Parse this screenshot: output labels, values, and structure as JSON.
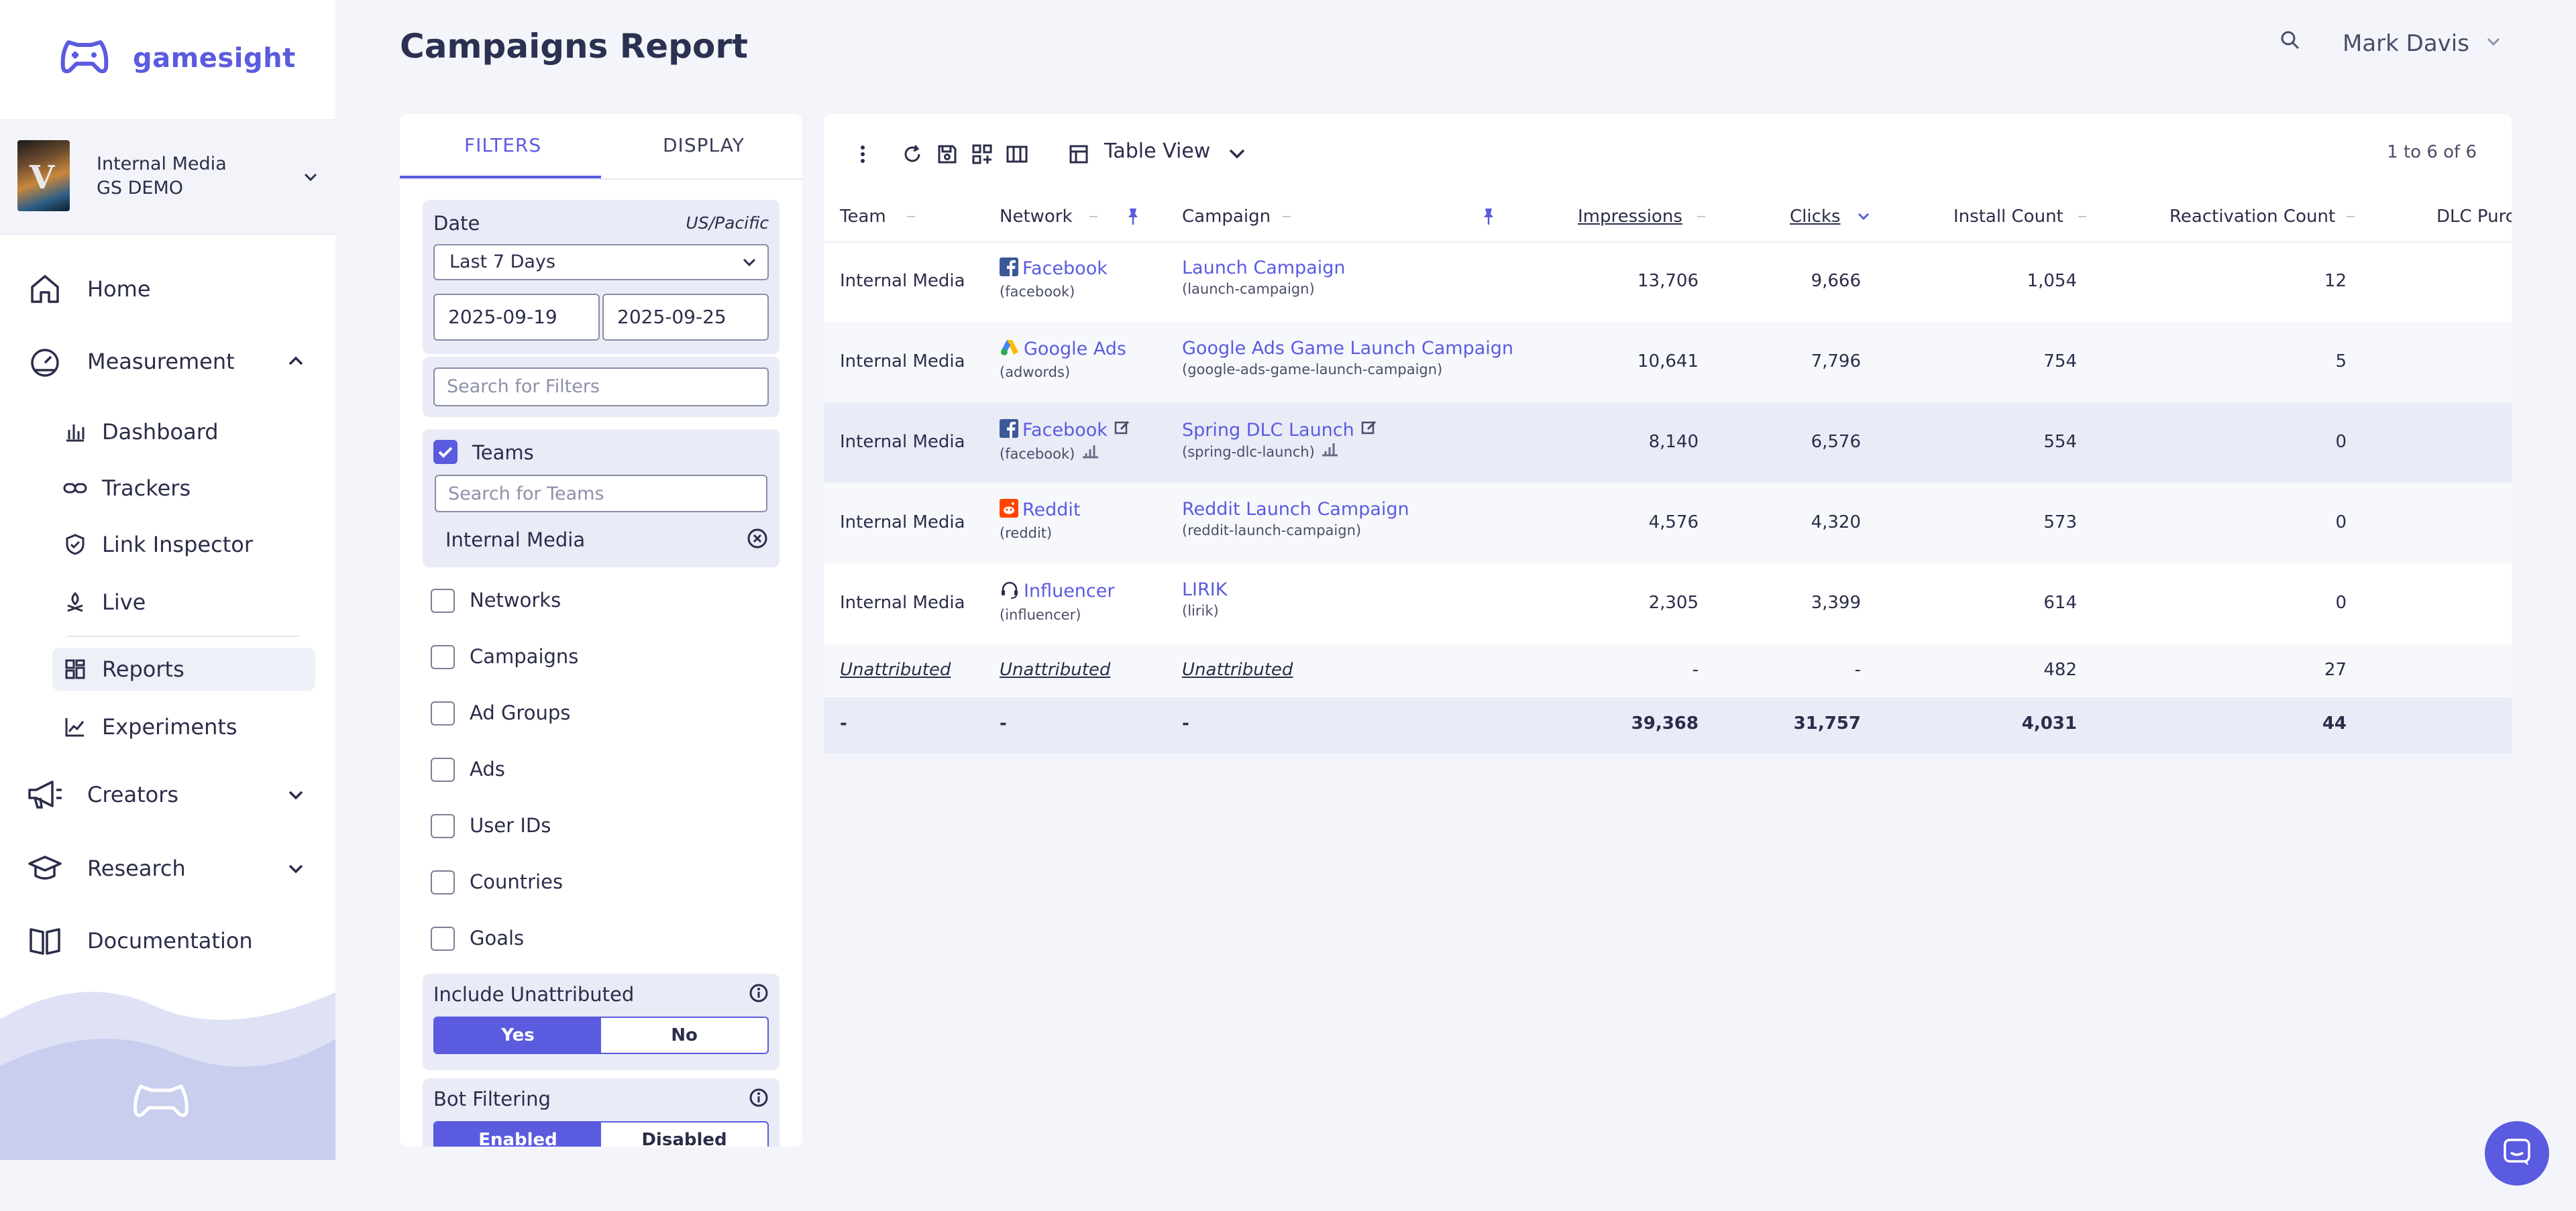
{
  "app": {
    "brand": "gamesight"
  },
  "sidebar": {
    "org": {
      "line1": "Internal Media",
      "line2": "GS DEMO"
    },
    "nav": {
      "home": "Home",
      "measurement": "Measurement",
      "dashboard": "Dashboard",
      "trackers": "Trackers",
      "link_inspector": "Link Inspector",
      "live": "Live",
      "reports": "Reports",
      "experiments": "Experiments",
      "creators": "Creators",
      "research": "Research",
      "documentation": "Documentation"
    }
  },
  "header": {
    "title": "Campaigns Report",
    "user": "Mark Davis"
  },
  "filters": {
    "tabs": {
      "filters": "FILTERS",
      "display": "DISPLAY"
    },
    "date": {
      "label": "Date",
      "timezone": "US/Pacific",
      "range": "Last 7 Days",
      "start": "2025-09-19",
      "end": "2025-09-25"
    },
    "search_placeholder": "Search for Filters",
    "teams": {
      "label": "Teams",
      "search_placeholder": "Search for Teams",
      "selected": "Internal Media"
    },
    "checkboxes": {
      "networks": "Networks",
      "campaigns": "Campaigns",
      "ad_groups": "Ad Groups",
      "ads": "Ads",
      "user_ids": "User IDs",
      "countries": "Countries",
      "goals": "Goals"
    },
    "include_unattributed": {
      "label": "Include Unattributed",
      "yes": "Yes",
      "no": "No"
    },
    "bot_filtering": {
      "label": "Bot Filtering",
      "enabled": "Enabled",
      "disabled": "Disabled"
    }
  },
  "table": {
    "view": "Table View",
    "count": "1 to 6 of 6",
    "columns": {
      "team": "Team",
      "network": "Network",
      "campaign": "Campaign",
      "impressions": "Impressions",
      "clicks": "Clicks",
      "install_count": "Install Count",
      "reactivation_count": "Reactivation Count",
      "dlc": "DLC Purc"
    },
    "rows": [
      {
        "team": "Internal Media",
        "network": "Facebook",
        "network_id": "(facebook)",
        "campaign": "Launch Campaign",
        "campaign_id": "(launch-campaign)",
        "impressions": "13,706",
        "clicks": "9,666",
        "installs": "1,054",
        "reactivations": "12"
      },
      {
        "team": "Internal Media",
        "network": "Google Ads",
        "network_id": "(adwords)",
        "campaign": "Google Ads Game Launch Campaign",
        "campaign_id": "(google-ads-game-launch-campaign)",
        "impressions": "10,641",
        "clicks": "7,796",
        "installs": "754",
        "reactivations": "5"
      },
      {
        "team": "Internal Media",
        "network": "Facebook",
        "network_id": "(facebook)",
        "campaign": "Spring DLC Launch",
        "campaign_id": "(spring-dlc-launch)",
        "impressions": "8,140",
        "clicks": "6,576",
        "installs": "554",
        "reactivations": "0"
      },
      {
        "team": "Internal Media",
        "network": "Reddit",
        "network_id": "(reddit)",
        "campaign": "Reddit Launch Campaign",
        "campaign_id": "(reddit-launch-campaign)",
        "impressions": "4,576",
        "clicks": "4,320",
        "installs": "573",
        "reactivations": "0"
      },
      {
        "team": "Internal Media",
        "network": "Influencer",
        "network_id": "(influencer)",
        "campaign": "LIRIK",
        "campaign_id": "(lirik)",
        "impressions": "2,305",
        "clicks": "3,399",
        "installs": "614",
        "reactivations": "0"
      }
    ],
    "unattributed": {
      "team": "Unattributed",
      "network": "Unattributed",
      "campaign": "Unattributed",
      "impressions": "-",
      "clicks": "-",
      "installs": "482",
      "reactivations": "27"
    },
    "totals": {
      "team": "-",
      "network": "-",
      "campaign": "-",
      "impressions": "39,368",
      "clicks": "31,757",
      "installs": "4,031",
      "reactivations": "44"
    }
  },
  "colors": {
    "accent": "#5b5bdf",
    "text": "#2b2d4a",
    "background": "#f4f5fa",
    "selected_row": "#e9ebf7"
  }
}
